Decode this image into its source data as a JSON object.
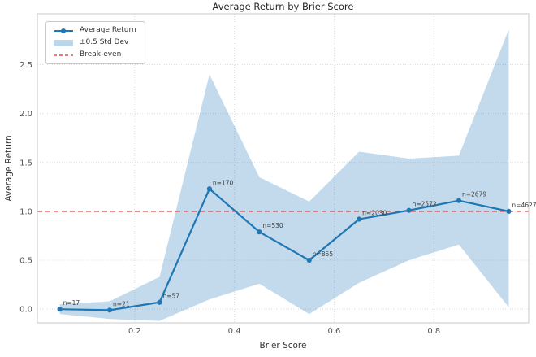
{
  "chart_data": {
    "type": "line",
    "title": "Average Return by Brier Score",
    "xlabel": "Brier Score",
    "ylabel": "Average Return",
    "x": [
      0.05,
      0.15,
      0.25,
      0.35,
      0.45,
      0.55,
      0.65,
      0.75,
      0.85,
      0.95
    ],
    "series": [
      {
        "name": "Average Return",
        "values": [
          0.0,
          -0.01,
          0.07,
          1.23,
          0.79,
          0.5,
          0.92,
          1.01,
          1.11,
          1.0
        ]
      }
    ],
    "band": {
      "name": "±0.5 Std Dev",
      "upper": [
        0.05,
        0.08,
        0.33,
        2.4,
        1.35,
        1.1,
        1.61,
        1.54,
        1.57,
        2.86
      ],
      "lower": [
        -0.05,
        -0.1,
        -0.12,
        0.1,
        0.26,
        -0.05,
        0.27,
        0.5,
        0.66,
        0.02
      ]
    },
    "break_even": {
      "name": "Break-even",
      "value": 1.0
    },
    "point_labels": [
      "n=17",
      "n=21",
      "n=57",
      "n=170",
      "n=530",
      "n=855",
      "n=2030",
      "n=2572",
      "n=2679",
      "n=4627"
    ],
    "x_ticks": [
      0.2,
      0.4,
      0.6,
      0.8
    ],
    "x_tick_labels": [
      "0.2",
      "0.4",
      "0.6",
      "0.8"
    ],
    "y_ticks": [
      0.0,
      0.5,
      1.0,
      1.5,
      2.0,
      2.5
    ],
    "y_tick_labels": [
      "0.0",
      "0.5",
      "1.0",
      "1.5",
      "2.0",
      "2.5"
    ],
    "xlim": [
      0.005,
      0.99
    ],
    "ylim": [
      -0.14,
      3.02
    ],
    "grid": true,
    "legend_position": "upper-left",
    "colors": {
      "line": "#1f77b4",
      "marker": "#1f77b4",
      "band_fill": "#1f77b4",
      "band_opacity": "0.27",
      "break_even": "#d9534f",
      "grid": "#dcdcdc",
      "spine": "#c9c9c9",
      "tick_text": "#555555",
      "annotation_text": "#404040"
    }
  }
}
